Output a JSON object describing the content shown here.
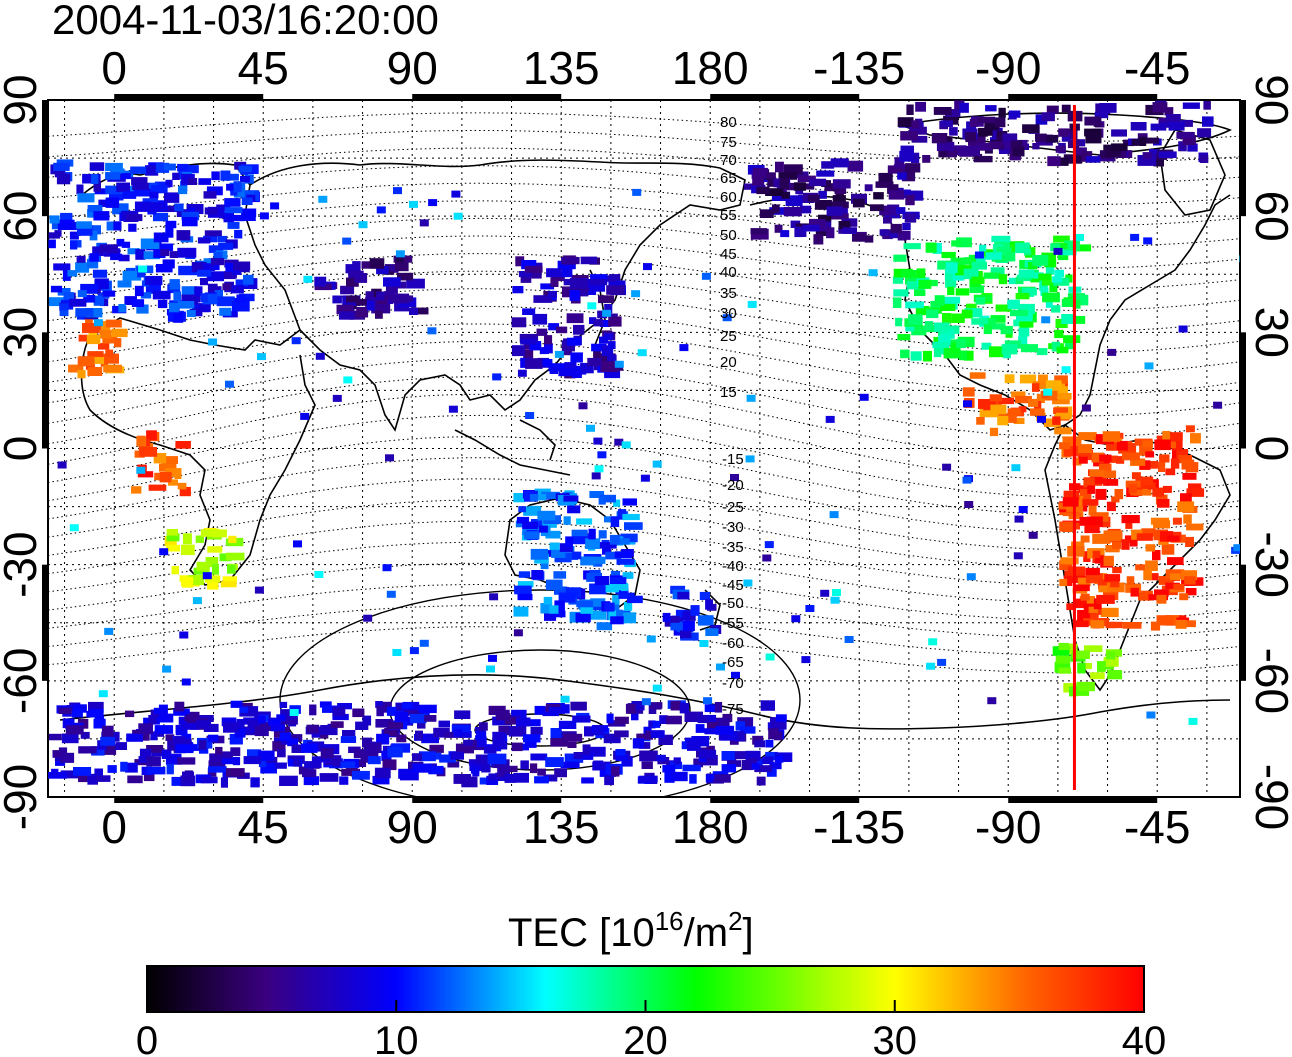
{
  "title": "2004-11-03/16:20:00",
  "map": {
    "x_ticks_top": [
      "0",
      "45",
      "90",
      "135",
      "180",
      "-135",
      "-90",
      "-45"
    ],
    "x_ticks_bottom": [
      "0",
      "45",
      "90",
      "135",
      "180",
      "-135",
      "-90",
      "-45"
    ],
    "y_ticks_left": [
      "90",
      "60",
      "30",
      "0",
      "-30",
      "-60",
      "-90"
    ],
    "y_ticks_right": [
      "90",
      "60",
      "30",
      "0",
      "-30",
      "-60",
      "-90"
    ],
    "terminator_color": "#ff0000",
    "terminator_longitude": -70,
    "contour_labels_north": [
      "80",
      "75",
      "70",
      "65",
      "60",
      "55",
      "50",
      "45",
      "40",
      "35",
      "30",
      "25",
      "20",
      "15"
    ],
    "contour_labels_south": [
      "-15",
      "-20",
      "-25",
      "-30",
      "-35",
      "-40",
      "-45",
      "-50",
      "-55",
      "-60",
      "-65",
      "-70",
      "-75"
    ]
  },
  "colorbar": {
    "label_text": "TEC  [10",
    "label_sup1": "16",
    "label_mid": "/m",
    "label_sup2": "2",
    "label_end": "]",
    "ticks": [
      "0",
      "10",
      "20",
      "30",
      "40"
    ],
    "min": 0,
    "max": 40,
    "colors": [
      "#000000",
      "#3a0080",
      "#0000ff",
      "#00ffff",
      "#00ff00",
      "#ffff00",
      "#ff0000"
    ]
  },
  "chart_data": {
    "type": "heatmap",
    "title": "2004-11-03/16:20:00",
    "xlabel": "",
    "ylabel": "",
    "x_range": [
      -20,
      340
    ],
    "y_range": [
      -90,
      90
    ],
    "value_range": [
      0,
      40
    ],
    "regions": [
      {
        "lon": [
          -20,
          40
        ],
        "lat": [
          35,
          75
        ],
        "tec": 10
      },
      {
        "lon": [
          -15,
          0
        ],
        "lat": [
          20,
          35
        ],
        "tec": 35
      },
      {
        "lon": [
          5,
          20
        ],
        "lat": [
          -10,
          5
        ],
        "tec": 37
      },
      {
        "lon": [
          15,
          35
        ],
        "lat": [
          -35,
          -20
        ],
        "tec": 28
      },
      {
        "lon": [
          60,
          90
        ],
        "lat": [
          35,
          50
        ],
        "tec": 6
      },
      {
        "lon": [
          120,
          150
        ],
        "lat": [
          20,
          50
        ],
        "tec": 7
      },
      {
        "lon": [
          120,
          155
        ],
        "lat": [
          -45,
          -10
        ],
        "tec": 12
      },
      {
        "lon": [
          165,
          180
        ],
        "lat": [
          -48,
          -35
        ],
        "tec": 10
      },
      {
        "lon": [
          190,
          240
        ],
        "lat": [
          55,
          75
        ],
        "tec": 5
      },
      {
        "lon": [
          235,
          290
        ],
        "lat": [
          25,
          55
        ],
        "tec": 20
      },
      {
        "lon": [
          255,
          285
        ],
        "lat": [
          5,
          20
        ],
        "tec": 36
      },
      {
        "lon": [
          285,
          325
        ],
        "lat": [
          -45,
          5
        ],
        "tec": 38
      },
      {
        "lon": [
          283,
          300
        ],
        "lat": [
          -62,
          -50
        ],
        "tec": 25
      },
      {
        "lon": [
          235,
          330
        ],
        "lat": [
          75,
          90
        ],
        "tec": 5
      },
      {
        "lon": [
          -20,
          200
        ],
        "lat": [
          -85,
          -65
        ],
        "tec": 8
      }
    ]
  }
}
